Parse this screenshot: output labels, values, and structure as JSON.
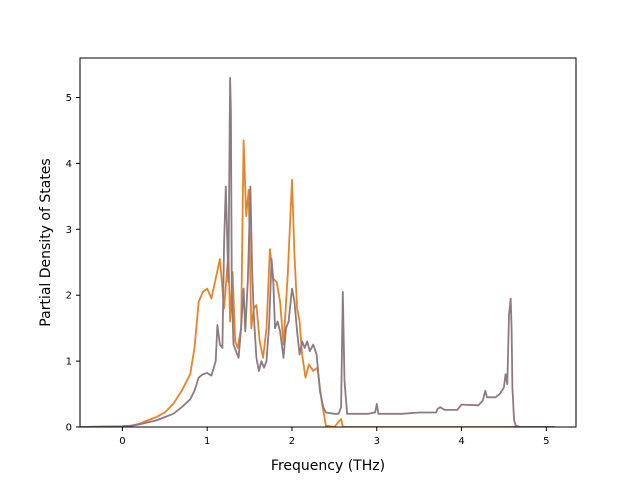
{
  "chart_data": {
    "type": "line",
    "title": "",
    "xlabel": "Frequency (THz)",
    "ylabel": "Partial Density of States",
    "xlim": [
      -0.5,
      5.35
    ],
    "ylim": [
      0,
      5.6
    ],
    "xticks": [
      0,
      1,
      2,
      3,
      4,
      5
    ],
    "yticks": [
      0,
      1,
      2,
      3,
      4,
      5
    ],
    "grid": false,
    "legend": "none",
    "series": [
      {
        "color": "#e8832b",
        "x": [
          -0.5,
          0.0,
          0.1,
          0.2,
          0.3,
          0.4,
          0.5,
          0.6,
          0.7,
          0.8,
          0.85,
          0.9,
          0.95,
          1.0,
          1.05,
          1.1,
          1.15,
          1.2,
          1.25,
          1.27,
          1.3,
          1.33,
          1.36,
          1.4,
          1.43,
          1.46,
          1.49,
          1.52,
          1.55,
          1.58,
          1.62,
          1.66,
          1.7,
          1.74,
          1.78,
          1.82,
          1.86,
          1.9,
          1.95,
          2.0,
          2.03,
          2.06,
          2.09,
          2.12,
          2.16,
          2.2,
          2.25,
          2.3,
          2.35,
          2.4,
          2.5,
          2.55,
          2.58,
          2.6,
          2.7,
          2.8,
          3.0,
          3.5,
          4.0,
          4.5,
          4.58,
          4.6,
          4.62,
          5.1
        ],
        "y": [
          0,
          0.01,
          0.02,
          0.05,
          0.1,
          0.15,
          0.22,
          0.35,
          0.55,
          0.8,
          1.2,
          1.9,
          2.05,
          2.1,
          1.95,
          2.25,
          2.55,
          1.8,
          2.65,
          1.6,
          2.35,
          1.3,
          1.2,
          1.5,
          4.35,
          3.2,
          3.6,
          1.5,
          1.8,
          1.85,
          1.3,
          1.05,
          1.5,
          2.7,
          2.25,
          2.2,
          1.9,
          1.25,
          2.3,
          3.75,
          2.6,
          1.8,
          1.6,
          1.1,
          0.75,
          0.95,
          0.85,
          0.9,
          0.4,
          0.02,
          0.0,
          0.08,
          0.12,
          0.0,
          0.0,
          0.0,
          0.0,
          0.0,
          0.0,
          0.0,
          0.0,
          0.0,
          0.0,
          0.0
        ]
      },
      {
        "color": "#8c7b82",
        "x": [
          -0.5,
          0.0,
          0.1,
          0.2,
          0.3,
          0.4,
          0.5,
          0.6,
          0.7,
          0.8,
          0.85,
          0.9,
          0.95,
          1.0,
          1.05,
          1.1,
          1.12,
          1.15,
          1.18,
          1.2,
          1.22,
          1.25,
          1.27,
          1.28,
          1.29,
          1.31,
          1.34,
          1.37,
          1.4,
          1.43,
          1.45,
          1.48,
          1.51,
          1.53,
          1.55,
          1.58,
          1.61,
          1.64,
          1.67,
          1.7,
          1.73,
          1.76,
          1.78,
          1.8,
          1.83,
          1.86,
          1.9,
          1.93,
          1.96,
          2.0,
          2.03,
          2.06,
          2.09,
          2.12,
          2.15,
          2.18,
          2.21,
          2.25,
          2.29,
          2.33,
          2.37,
          2.4,
          2.5,
          2.55,
          2.58,
          2.6,
          2.62,
          2.65,
          2.9,
          2.98,
          3.0,
          3.02,
          3.06,
          3.1,
          3.3,
          3.5,
          3.7,
          3.72,
          3.75,
          3.8,
          3.95,
          4.0,
          4.2,
          4.25,
          4.28,
          4.3,
          4.4,
          4.45,
          4.5,
          4.52,
          4.54,
          4.56,
          4.58,
          4.59,
          4.6,
          4.62,
          4.64,
          4.7,
          5.1
        ],
        "y": [
          0,
          0.01,
          0.02,
          0.04,
          0.07,
          0.1,
          0.15,
          0.2,
          0.3,
          0.42,
          0.55,
          0.75,
          0.8,
          0.82,
          0.78,
          1.0,
          1.55,
          1.25,
          1.2,
          2.8,
          3.65,
          2.2,
          5.3,
          4.8,
          2.05,
          1.25,
          1.15,
          1.05,
          1.5,
          2.1,
          1.45,
          2.25,
          3.65,
          2.4,
          1.7,
          1.05,
          0.85,
          1.0,
          0.9,
          1.0,
          1.55,
          2.55,
          2.2,
          1.5,
          1.6,
          1.45,
          1.05,
          1.5,
          1.6,
          2.1,
          1.9,
          1.45,
          1.1,
          1.3,
          1.2,
          1.3,
          1.15,
          1.25,
          1.1,
          0.55,
          0.3,
          0.22,
          0.2,
          0.2,
          0.3,
          2.05,
          0.7,
          0.2,
          0.2,
          0.22,
          0.35,
          0.2,
          0.2,
          0.2,
          0.2,
          0.22,
          0.22,
          0.28,
          0.3,
          0.26,
          0.26,
          0.34,
          0.33,
          0.4,
          0.55,
          0.45,
          0.45,
          0.5,
          0.6,
          0.8,
          0.65,
          1.7,
          1.95,
          1.5,
          0.6,
          0.1,
          0.02,
          0.0,
          0.0
        ]
      }
    ]
  }
}
